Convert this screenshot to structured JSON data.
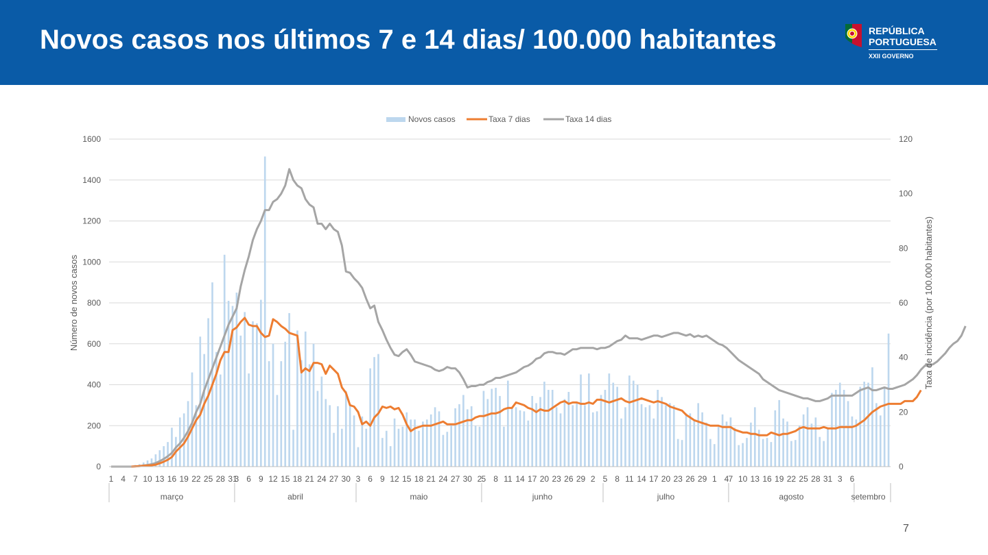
{
  "header": {
    "title": "Novos casos nos últimos 7 e 14 dias/ 100.000 habitantes",
    "logo_line1": "REPÚBLICA",
    "logo_line2": "PORTUGUESA",
    "logo_line3": "XXII GOVERNO"
  },
  "slide_number": "7",
  "colors": {
    "header_bg": "#0a5ba7",
    "bars": "#bdd7ee",
    "taxa7": "#ed7d31",
    "taxa14": "#a5a5a5"
  },
  "chart_data": {
    "type": "bar",
    "title": "",
    "legend": [
      "Novos casos",
      "Taxa 7 dias",
      "Taxa 14 dias"
    ],
    "legend_position": "top-center",
    "ylabel": "Número de novos casos",
    "y2label": "Taxa de incidência (por 100.000 habitantes)",
    "ylim": [
      0,
      1600
    ],
    "y2lim": [
      0,
      120
    ],
    "yticks": [
      0,
      200,
      400,
      600,
      800,
      1000,
      1200,
      1400,
      1600
    ],
    "y2ticks": [
      0,
      20,
      40,
      60,
      80,
      100,
      120
    ],
    "grid": true,
    "months": [
      {
        "name": "março",
        "days": 31
      },
      {
        "name": "abril",
        "days": 30
      },
      {
        "name": "maio",
        "days": 31
      },
      {
        "name": "junho",
        "days": 30
      },
      {
        "name": "julho",
        "days": 31
      },
      {
        "name": "agosto",
        "days": 31
      },
      {
        "name": "setembro",
        "days": 7
      }
    ],
    "x_tick_labels": [
      "1",
      "4",
      "7",
      "10",
      "13",
      "16",
      "19",
      "22",
      "25",
      "28",
      "31",
      "3",
      "6",
      "9",
      "12",
      "15",
      "18",
      "21",
      "24",
      "27",
      "30",
      "3",
      "6",
      "9",
      "12",
      "15",
      "18",
      "21",
      "24",
      "27",
      "30",
      "2",
      "5",
      "8",
      "11",
      "14",
      "17",
      "20",
      "23",
      "26",
      "29",
      "2",
      "5",
      "8",
      "11",
      "14",
      "17",
      "20",
      "23",
      "26",
      "29",
      "1",
      "4",
      "7",
      "10",
      "13",
      "16",
      "19",
      "22",
      "25",
      "28",
      "31",
      "3",
      "6"
    ],
    "series": [
      {
        "name": "Novos casos",
        "type": "bar",
        "axis": "left",
        "values": [
          0,
          0,
          0,
          0,
          2,
          4,
          8,
          12,
          20,
          30,
          40,
          60,
          80,
          100,
          120,
          190,
          145,
          240,
          260,
          320,
          460,
          300,
          635,
          550,
          725,
          900,
          560,
          450,
          1035,
          810,
          785,
          850,
          640,
          755,
          455,
          710,
          700,
          815,
          1515,
          515,
          600,
          350,
          515,
          610,
          750,
          180,
          665,
          520,
          660,
          500,
          600,
          370,
          440,
          330,
          300,
          165,
          295,
          185,
          370,
          300,
          250,
          95,
          245,
          185,
          480,
          535,
          550,
          140,
          175,
          100,
          235,
          185,
          195,
          265,
          230,
          230,
          175,
          220,
          230,
          255,
          290,
          270,
          155,
          170,
          210,
          285,
          305,
          350,
          280,
          295,
          200,
          195,
          370,
          330,
          380,
          385,
          345,
          195,
          420,
          290,
          290,
          275,
          270,
          225,
          345,
          310,
          340,
          415,
          375,
          375,
          290,
          260,
          330,
          365,
          300,
          310,
          450,
          300,
          455,
          265,
          270,
          350,
          375,
          455,
          410,
          390,
          235,
          290,
          445,
          420,
          400,
          305,
          290,
          300,
          235,
          375,
          340,
          300,
          310,
          300,
          135,
          130,
          260,
          260,
          230,
          310,
          265,
          215,
          135,
          110,
          195,
          255,
          220,
          240,
          190,
          105,
          115,
          140,
          215,
          290,
          180,
          135,
          140,
          120,
          275,
          325,
          235,
          220,
          125,
          130,
          200,
          255,
          290,
          210,
          240,
          145,
          125,
          190,
          360,
          375,
          410,
          375,
          320,
          245,
          230,
          390,
          415,
          410,
          485,
          310,
          250,
          380,
          650
        ]
      },
      {
        "name": "Taxa 7 dias",
        "type": "line",
        "axis": "right",
        "values": [
          0,
          0,
          0,
          0,
          0,
          0,
          0.1,
          0.2,
          0.3,
          0.4,
          0.5,
          0.7,
          1.2,
          1.8,
          2.5,
          3.5,
          5.5,
          7,
          8.5,
          11,
          14,
          17,
          19,
          23,
          26,
          30,
          34,
          39,
          42,
          42,
          50,
          51,
          53,
          54.5,
          52,
          51.5,
          51.5,
          49,
          47.5,
          48,
          54,
          53,
          51.5,
          50.5,
          49,
          48.5,
          48,
          34.5,
          36,
          35,
          38,
          38,
          37.5,
          34,
          37,
          35.5,
          34,
          29,
          27,
          22.5,
          22,
          20,
          15.5,
          16.5,
          15,
          18,
          19.5,
          22,
          21.5,
          22,
          21,
          21.5,
          19,
          15.5,
          13,
          14,
          14.5,
          15,
          15,
          15,
          15.5,
          16,
          16.5,
          15.5,
          15.5,
          15.5,
          16,
          16.5,
          17,
          17,
          18,
          18.5,
          18.5,
          19,
          19.5,
          19.5,
          20,
          21,
          21.5,
          21.5,
          23.5,
          23,
          22.5,
          21.5,
          21,
          20,
          21,
          20.5,
          20.5,
          21.5,
          22.5,
          23.5,
          24,
          23,
          23.5,
          23.5,
          23,
          23,
          23.5,
          23,
          24.5,
          24.5,
          24,
          23.5,
          24,
          24.5,
          25,
          24,
          23.5,
          24,
          24.5,
          25,
          24.5,
          24,
          23.5,
          24,
          23.5,
          23,
          22,
          21.5,
          21,
          20.5,
          19,
          18,
          17,
          16.5,
          16,
          15.5,
          15,
          15,
          15,
          14.5,
          14.5,
          14.5,
          13.5,
          13,
          12.5,
          12.5,
          12,
          12,
          11.5,
          11.5,
          11.5,
          12.5,
          12,
          11.5,
          12,
          12,
          12.5,
          13,
          14,
          14.5,
          14,
          14,
          14,
          14,
          14.5,
          14,
          14,
          14,
          14.5,
          14.5,
          14.5,
          14.5,
          15,
          16,
          17,
          18.5,
          20,
          21,
          22,
          22.5,
          23,
          23,
          23,
          23,
          24,
          24,
          24,
          25.5,
          28
        ]
      },
      {
        "name": "Taxa 14 dias",
        "type": "line",
        "axis": "right",
        "values": [
          0,
          0,
          0,
          0,
          0,
          0,
          0.1,
          0.2,
          0.4,
          0.6,
          0.9,
          1.3,
          2,
          2.8,
          3.8,
          5,
          7,
          8.5,
          10.5,
          13,
          16,
          20,
          23,
          28,
          32,
          36,
          40,
          44,
          48,
          52,
          55,
          58,
          66,
          72,
          77,
          83,
          87,
          90,
          94,
          94,
          97,
          98,
          100,
          103,
          109,
          105,
          103,
          102,
          98,
          96,
          95,
          89,
          89,
          87,
          89,
          87,
          86,
          81,
          71.5,
          71,
          69,
          67.5,
          65.5,
          61.5,
          58,
          59,
          53,
          50,
          46.5,
          43.5,
          41,
          40.5,
          42,
          43,
          41,
          38.5,
          38,
          37.5,
          37,
          36.5,
          35.5,
          35,
          35.5,
          36.5,
          36,
          36,
          34.5,
          32,
          29,
          29.5,
          29.5,
          30,
          30,
          31,
          31.5,
          32.5,
          32.5,
          33,
          33.5,
          34,
          34.5,
          35.5,
          36.5,
          37,
          38,
          39.5,
          40,
          41.5,
          42,
          42,
          41.5,
          41.5,
          41,
          42,
          43,
          43,
          43.5,
          43.5,
          43.5,
          43.5,
          43,
          43.5,
          43.5,
          44,
          45,
          46,
          46.5,
          48,
          47,
          47,
          47,
          46.5,
          47,
          47.5,
          48,
          48,
          47.5,
          48,
          48.5,
          49,
          49,
          48.5,
          48,
          48.5,
          47.5,
          48,
          47.5,
          48,
          47,
          46,
          45,
          44.5,
          43.5,
          42,
          40.5,
          39,
          38,
          37,
          36,
          35,
          34,
          32,
          31,
          30,
          29,
          28,
          27.5,
          27,
          26.5,
          26,
          25.5,
          25,
          25,
          24.5,
          24,
          24,
          24.5,
          25,
          26,
          26,
          26,
          26,
          26,
          26,
          27,
          28,
          28.5,
          29,
          28,
          28,
          28.5,
          29,
          28.5,
          28.5,
          29,
          29.5,
          30,
          31,
          32,
          33.5,
          35.5,
          37,
          37,
          37.5,
          38.5,
          40,
          41.5,
          43.5,
          45,
          46,
          48,
          51.5
        ]
      }
    ]
  }
}
